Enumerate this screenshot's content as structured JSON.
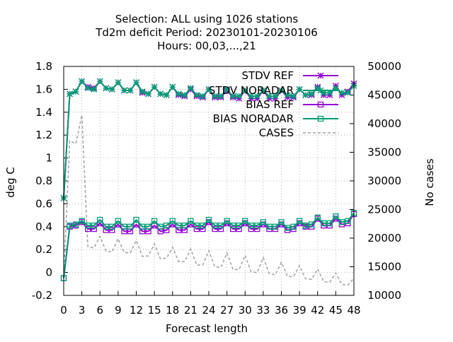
{
  "chart_data": {
    "type": "line",
    "title_lines": [
      "Selection: ALL using  1026 stations",
      "Td2m deficit   Period: 20230101-20230106",
      "Hours:  00,03,...,21"
    ],
    "xlabel": "Forecast length",
    "ylabel": "deg C",
    "y2label": "No cases",
    "xlim": [
      0,
      48
    ],
    "ylim": [
      -0.2,
      1.8
    ],
    "y2lim": [
      10000,
      50000
    ],
    "xticks": [
      0,
      3,
      6,
      9,
      12,
      15,
      18,
      21,
      24,
      27,
      30,
      33,
      36,
      39,
      42,
      45,
      48
    ],
    "yticks": [
      -0.2,
      0,
      0.2,
      0.4,
      0.6,
      0.8,
      1,
      1.2,
      1.4,
      1.6,
      1.8
    ],
    "yticklabels": [
      "-0.2",
      "0",
      "0.2",
      "0.4",
      "0.6",
      "0.8",
      "1",
      "1.2",
      "1.4",
      "1.6",
      "1.8"
    ],
    "y2ticks": [
      10000,
      15000,
      20000,
      25000,
      30000,
      35000,
      40000,
      45000,
      50000
    ],
    "grid": true,
    "legend_position": "top-right",
    "x": [
      0,
      1,
      2,
      3,
      4,
      5,
      6,
      7,
      8,
      9,
      10,
      11,
      12,
      13,
      14,
      15,
      16,
      17,
      18,
      19,
      20,
      21,
      22,
      23,
      24,
      25,
      26,
      27,
      28,
      29,
      30,
      31,
      32,
      33,
      34,
      35,
      36,
      37,
      38,
      39,
      40,
      41,
      42,
      43,
      44,
      45,
      46,
      47,
      48
    ],
    "series": [
      {
        "name": "STDV REF",
        "axis": "y1",
        "color": "#9400d3",
        "marker": "x-star",
        "values": [
          0.65,
          1.56,
          1.58,
          1.67,
          1.62,
          1.61,
          1.67,
          1.61,
          1.6,
          1.66,
          1.59,
          1.59,
          1.66,
          1.57,
          1.56,
          1.62,
          1.56,
          1.55,
          1.62,
          1.55,
          1.54,
          1.6,
          1.54,
          1.53,
          1.6,
          1.53,
          1.53,
          1.59,
          1.53,
          1.52,
          1.59,
          1.52,
          1.52,
          1.59,
          1.52,
          1.52,
          1.59,
          1.53,
          1.53,
          1.6,
          1.55,
          1.55,
          1.62,
          1.55,
          1.55,
          1.63,
          1.55,
          1.58,
          1.65
        ]
      },
      {
        "name": "STDV NORADAR",
        "axis": "y1",
        "color": "#009e73",
        "marker": "x-star",
        "values": [
          0.65,
          1.56,
          1.58,
          1.67,
          1.61,
          1.6,
          1.67,
          1.61,
          1.6,
          1.66,
          1.59,
          1.59,
          1.66,
          1.58,
          1.56,
          1.62,
          1.56,
          1.55,
          1.62,
          1.56,
          1.55,
          1.61,
          1.55,
          1.54,
          1.6,
          1.54,
          1.54,
          1.6,
          1.54,
          1.54,
          1.59,
          1.54,
          1.54,
          1.59,
          1.54,
          1.54,
          1.59,
          1.55,
          1.54,
          1.6,
          1.55,
          1.56,
          1.61,
          1.57,
          1.57,
          1.61,
          1.57,
          1.57,
          1.63
        ]
      },
      {
        "name": "BIAS REF",
        "axis": "y1",
        "color": "#9400d3",
        "marker": "square",
        "values": [
          -0.05,
          0.4,
          0.41,
          0.44,
          0.38,
          0.38,
          0.43,
          0.37,
          0.37,
          0.42,
          0.36,
          0.36,
          0.42,
          0.36,
          0.36,
          0.41,
          0.36,
          0.37,
          0.42,
          0.37,
          0.37,
          0.42,
          0.38,
          0.38,
          0.44,
          0.38,
          0.38,
          0.43,
          0.38,
          0.38,
          0.43,
          0.38,
          0.38,
          0.42,
          0.38,
          0.38,
          0.42,
          0.37,
          0.38,
          0.43,
          0.4,
          0.4,
          0.47,
          0.41,
          0.41,
          0.47,
          0.42,
          0.43,
          0.51
        ]
      },
      {
        "name": "BIAS NORADAR",
        "axis": "y1",
        "color": "#009e73",
        "marker": "square",
        "values": [
          -0.05,
          0.41,
          0.42,
          0.45,
          0.41,
          0.41,
          0.46,
          0.4,
          0.4,
          0.45,
          0.4,
          0.4,
          0.46,
          0.4,
          0.4,
          0.45,
          0.4,
          0.41,
          0.45,
          0.41,
          0.41,
          0.45,
          0.41,
          0.41,
          0.46,
          0.41,
          0.41,
          0.45,
          0.41,
          0.41,
          0.45,
          0.41,
          0.41,
          0.44,
          0.4,
          0.4,
          0.44,
          0.39,
          0.4,
          0.45,
          0.41,
          0.42,
          0.48,
          0.43,
          0.43,
          0.49,
          0.44,
          0.45,
          0.52
        ]
      },
      {
        "name": "CASES",
        "axis": "y2",
        "color": "#a0a0a0",
        "dashed": true,
        "values": [
          13200,
          37000,
          36500,
          41500,
          18500,
          18300,
          20300,
          17700,
          17600,
          19900,
          17500,
          17400,
          19600,
          16800,
          16900,
          19000,
          16400,
          16500,
          18400,
          15900,
          15900,
          18100,
          15300,
          15300,
          17800,
          15000,
          14900,
          17400,
          14500,
          14500,
          17000,
          14100,
          14000,
          16600,
          13800,
          13600,
          15800,
          13300,
          13300,
          15200,
          12900,
          12800,
          14600,
          12400,
          12300,
          13900,
          11900,
          11800,
          13000
        ]
      }
    ]
  }
}
